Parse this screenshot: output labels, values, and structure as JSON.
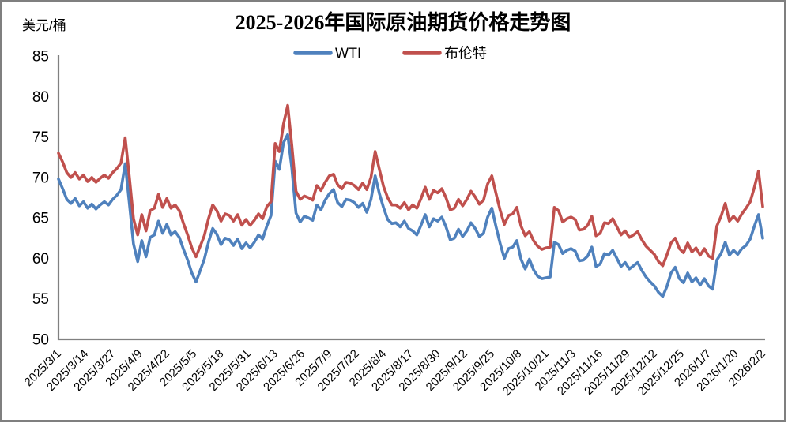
{
  "title": "2025-2026年国际原油期货价格走势图",
  "y_axis_unit": "美元/桶",
  "frame": {
    "border_color": "#7f7f7f",
    "axis_color": "#808080",
    "background": "#ffffff"
  },
  "legend": {
    "items": [
      {
        "label": "WTI",
        "color": "#4f81bd"
      },
      {
        "label": "布伦特",
        "color": "#c0504d"
      }
    ]
  },
  "chart_data": {
    "type": "line",
    "title": "2025-2026年国际原油期货价格走势图",
    "xlabel": "",
    "ylabel": "美元/桶",
    "ylim": [
      50,
      85
    ],
    "y_tick_labels": [
      "85",
      "80",
      "75",
      "70",
      "65",
      "60",
      "55",
      "50"
    ],
    "grid": false,
    "legend_position": "top",
    "x_tick_interval_days": 13,
    "start_day": 0,
    "step_days": 2,
    "x_tick_labels": [
      "2025/3/1",
      "2025/3/14",
      "2025/3/27",
      "2025/4/9",
      "2025/4/22",
      "2025/5/5",
      "2025/5/18",
      "2025/5/31",
      "2025/6/13",
      "2025/6/26",
      "2025/7/9",
      "2025/7/22",
      "2025/8/4",
      "2025/8/17",
      "2025/8/30",
      "2025/9/12",
      "2025/9/25",
      "2025/10/8",
      "2025/10/21",
      "2025/11/3",
      "2025/11/16",
      "2025/11/29",
      "2025/12/12",
      "2025/12/25",
      "2026/1/7",
      "2026/1/20",
      "2026/2/2"
    ],
    "series": [
      {
        "name": "WTI",
        "color": "#4f81bd",
        "values": [
          69.8,
          68.6,
          67.3,
          66.8,
          67.4,
          66.5,
          67.0,
          66.2,
          66.7,
          66.1,
          66.6,
          67.0,
          66.6,
          67.3,
          67.8,
          68.5,
          71.7,
          66.9,
          61.8,
          59.6,
          62.2,
          60.2,
          62.6,
          62.9,
          64.6,
          63.1,
          64.2,
          62.9,
          63.3,
          62.6,
          61.1,
          59.8,
          58.2,
          57.1,
          58.5,
          59.9,
          62.0,
          63.7,
          63.0,
          61.7,
          62.5,
          62.3,
          61.6,
          62.4,
          61.2,
          61.9,
          61.3,
          62.0,
          62.9,
          62.4,
          64.0,
          65.3,
          72.0,
          71.0,
          74.3,
          75.3,
          71.2,
          65.6,
          64.5,
          65.2,
          65.0,
          64.7,
          66.6,
          66.0,
          67.2,
          68.0,
          68.5,
          66.9,
          66.4,
          67.3,
          67.2,
          66.9,
          66.3,
          66.8,
          65.7,
          67.3,
          70.2,
          68.0,
          66.3,
          64.8,
          64.3,
          64.4,
          63.9,
          64.6,
          63.7,
          63.4,
          62.9,
          64.1,
          65.4,
          63.9,
          64.9,
          64.6,
          65.1,
          63.9,
          62.3,
          62.5,
          63.6,
          62.7,
          63.4,
          64.4,
          63.7,
          62.7,
          63.1,
          65.1,
          66.2,
          63.9,
          61.8,
          60.0,
          61.2,
          61.4,
          62.2,
          59.9,
          58.7,
          59.9,
          58.6,
          57.8,
          57.5,
          57.6,
          57.7,
          62.0,
          61.7,
          60.6,
          61.0,
          61.2,
          60.9,
          59.7,
          59.8,
          60.3,
          61.4,
          59.0,
          59.3,
          60.6,
          60.4,
          61.0,
          60.0,
          59.0,
          59.5,
          58.7,
          59.1,
          59.5,
          58.5,
          57.7,
          57.1,
          56.6,
          55.8,
          55.3,
          56.5,
          58.2,
          58.9,
          57.5,
          57.0,
          58.2,
          57.1,
          57.6,
          56.7,
          57.5,
          56.6,
          56.2,
          59.8,
          60.6,
          62.0,
          60.4,
          61.0,
          60.5,
          61.2,
          61.6,
          62.4,
          64.0,
          65.4,
          62.5
        ]
      },
      {
        "name": "布伦特",
        "color": "#c0504d",
        "values": [
          73.0,
          71.9,
          70.6,
          70.0,
          70.6,
          69.8,
          70.3,
          69.5,
          70.0,
          69.4,
          69.9,
          70.3,
          69.9,
          70.6,
          71.1,
          71.8,
          74.9,
          70.1,
          64.9,
          62.9,
          65.4,
          63.4,
          65.9,
          66.2,
          67.9,
          66.3,
          67.4,
          66.2,
          66.6,
          65.9,
          64.3,
          62.9,
          61.3,
          60.2,
          61.5,
          62.8,
          64.9,
          66.6,
          65.9,
          64.6,
          65.5,
          65.3,
          64.6,
          65.4,
          64.1,
          64.8,
          64.1,
          64.7,
          65.5,
          64.9,
          66.4,
          67.0,
          74.2,
          73.2,
          76.6,
          78.9,
          74.0,
          68.3,
          67.3,
          67.7,
          67.5,
          67.2,
          69.0,
          68.4,
          69.4,
          70.2,
          70.4,
          69.1,
          68.6,
          69.4,
          69.3,
          69.0,
          68.5,
          69.3,
          68.5,
          70.0,
          73.2,
          71.0,
          68.9,
          67.5,
          66.6,
          66.6,
          66.2,
          66.9,
          66.0,
          66.6,
          66.2,
          67.4,
          68.8,
          67.3,
          68.4,
          68.1,
          68.6,
          67.5,
          66.0,
          66.2,
          67.3,
          66.5,
          67.3,
          68.3,
          67.6,
          66.7,
          67.2,
          69.2,
          70.2,
          68.0,
          65.9,
          64.2,
          65.3,
          65.5,
          66.3,
          64.0,
          62.8,
          63.3,
          62.2,
          61.5,
          61.1,
          61.3,
          61.4,
          66.3,
          65.9,
          64.5,
          64.9,
          65.1,
          64.8,
          63.5,
          63.6,
          64.1,
          65.2,
          62.8,
          63.1,
          64.4,
          64.3,
          64.9,
          63.9,
          62.9,
          63.4,
          62.6,
          62.9,
          63.3,
          62.3,
          61.5,
          61.0,
          60.5,
          59.6,
          59.1,
          60.4,
          61.9,
          62.5,
          61.2,
          60.7,
          61.9,
          60.8,
          61.3,
          60.4,
          61.2,
          60.3,
          60.0,
          64.0,
          65.2,
          66.8,
          64.6,
          65.2,
          64.6,
          65.5,
          66.2,
          67.0,
          68.8,
          70.8,
          66.4
        ]
      }
    ]
  }
}
